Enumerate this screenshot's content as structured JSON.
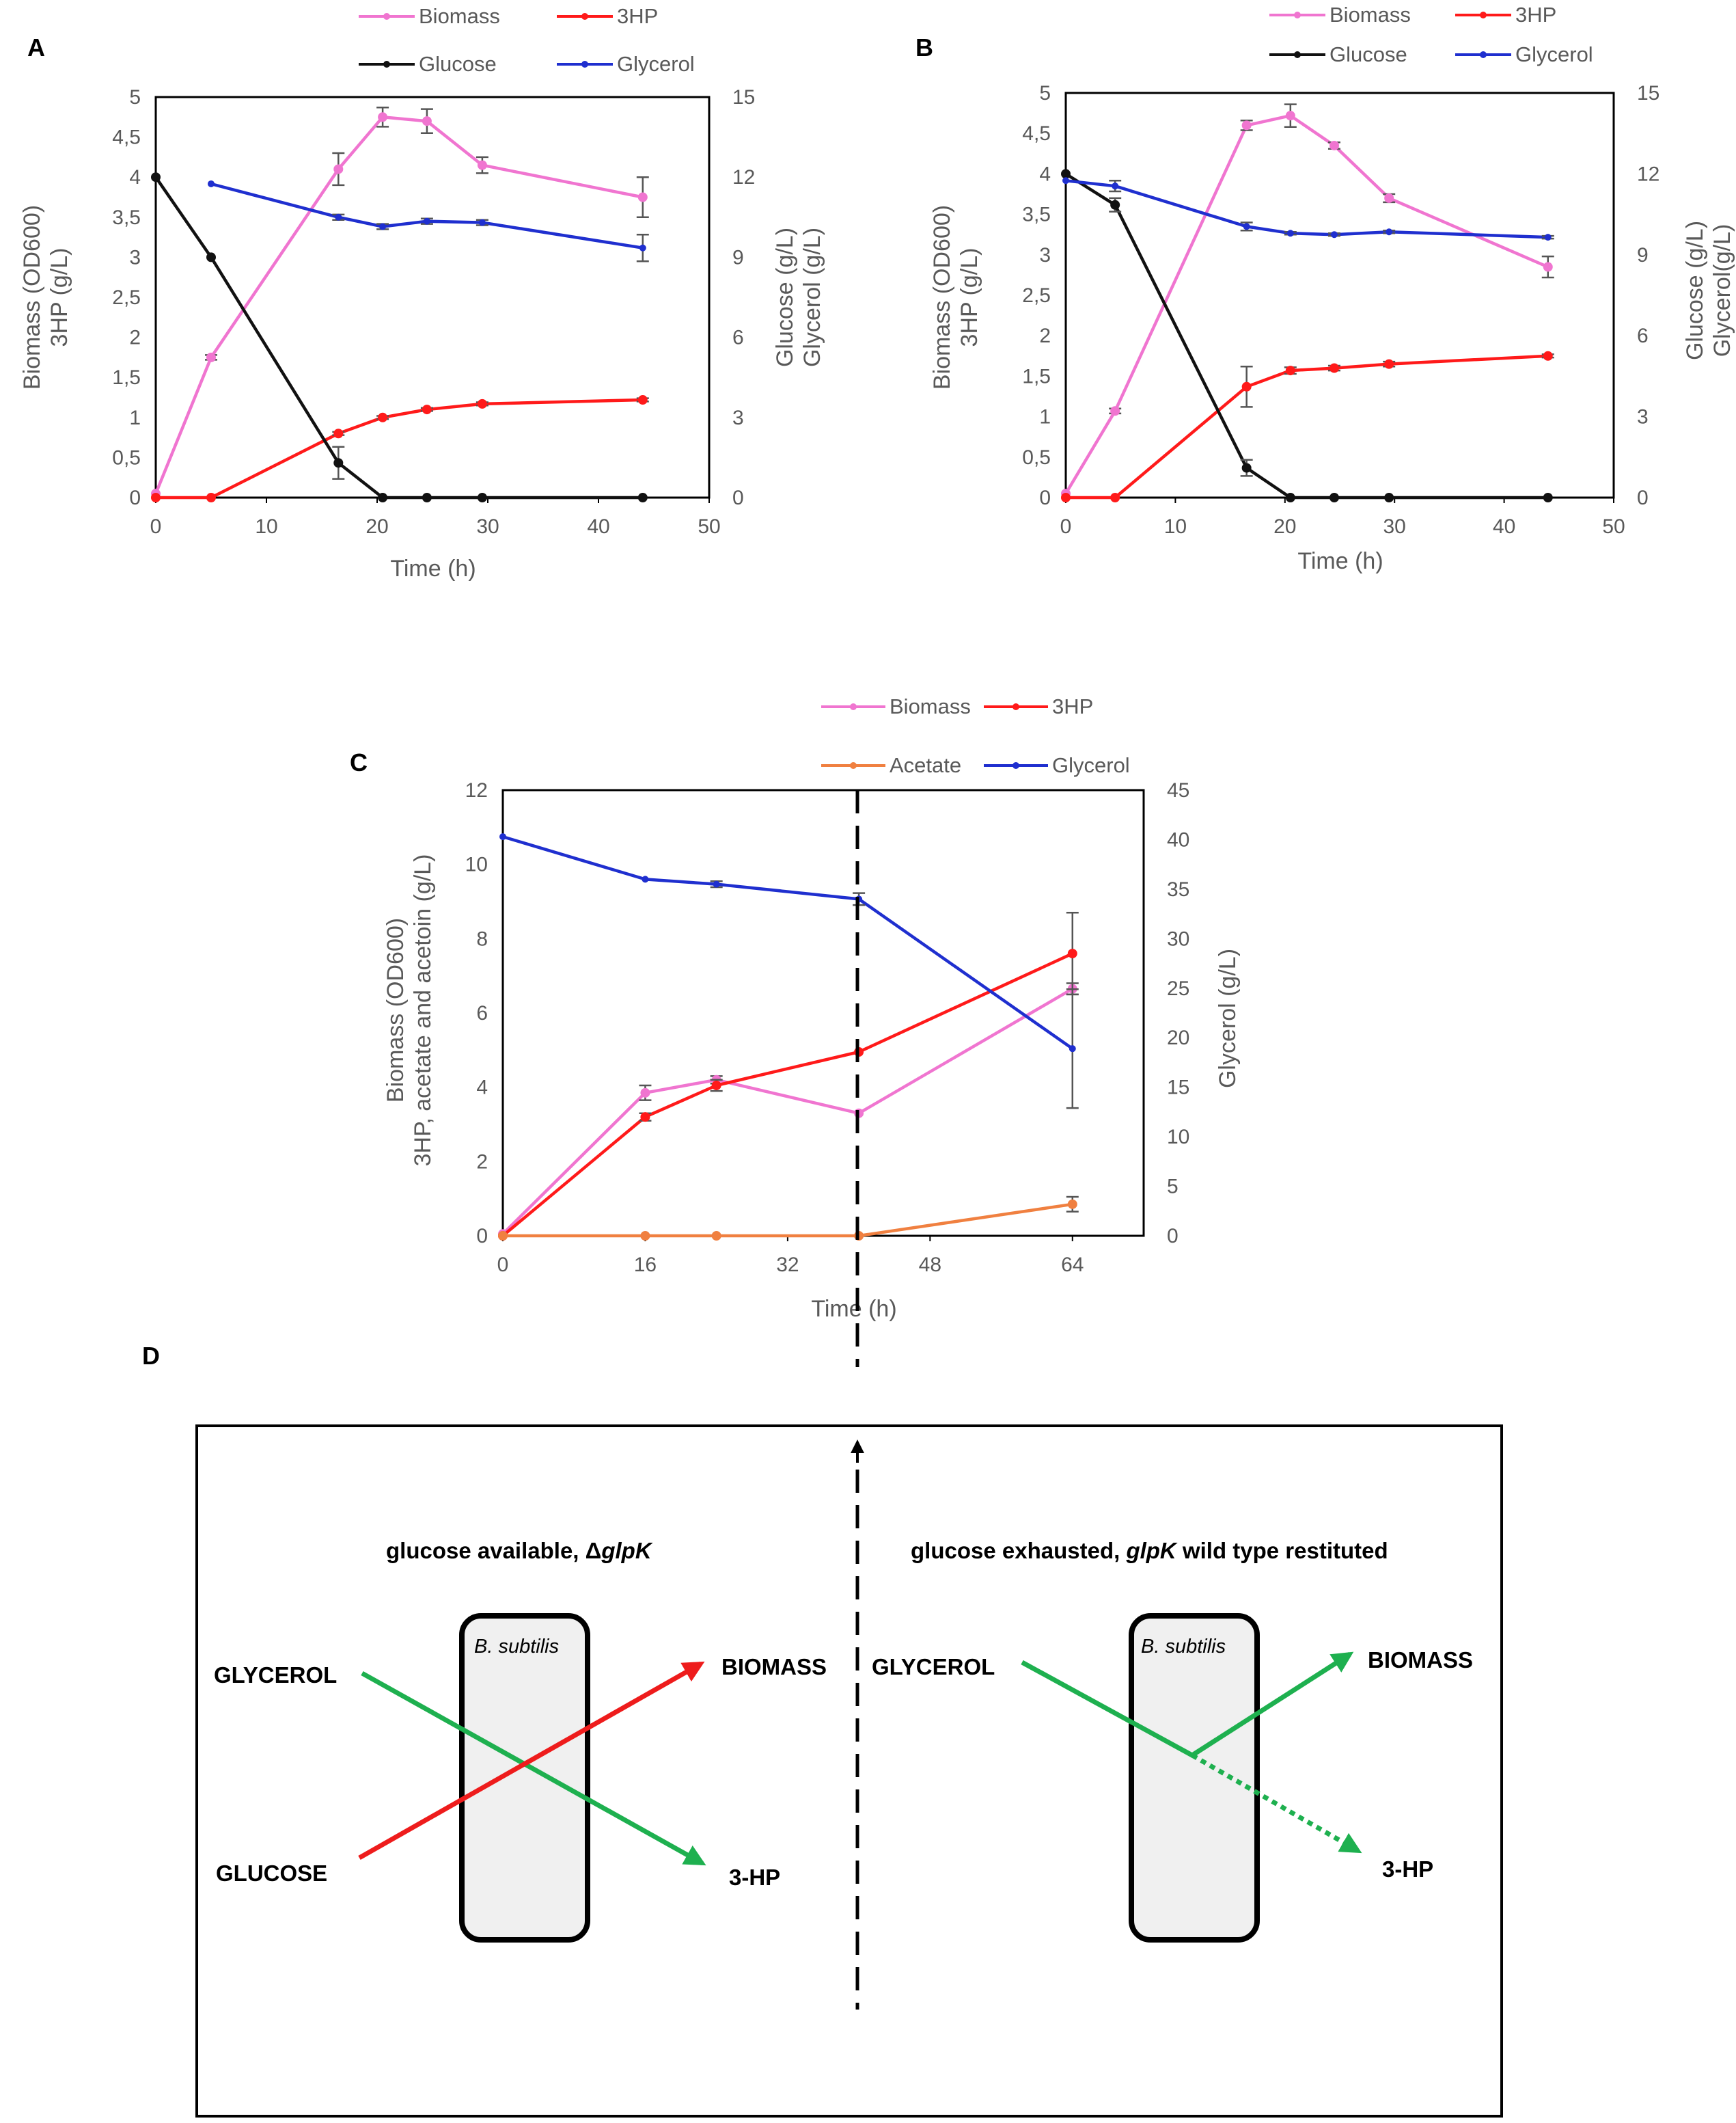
{
  "panels": {
    "A": {
      "letter": "A"
    },
    "B": {
      "letter": "B"
    },
    "C": {
      "letter": "C"
    },
    "D": {
      "letter": "D"
    }
  },
  "chart_data": [
    {
      "panel": "A",
      "type": "line",
      "title": "",
      "xlabel": "Time (h)",
      "ylabel_left": [
        "Biomass (OD600)",
        "3HP (g/L)"
      ],
      "ylabel_right": [
        "Glucose (g/L)",
        "Glycerol (g/L)"
      ],
      "xlim": [
        0,
        50
      ],
      "ylim_left": [
        0,
        5
      ],
      "ylim_right": [
        0,
        15
      ],
      "xticks": [
        0,
        10,
        20,
        30,
        40,
        50
      ],
      "xtick_labels": [
        "0",
        "10",
        "20",
        "30",
        "40",
        "50"
      ],
      "yticks_left": [
        0,
        0.5,
        1,
        1.5,
        2,
        2.5,
        3,
        3.5,
        4,
        4.5,
        5
      ],
      "ytick_labels_left": [
        "0",
        "0,5",
        "1",
        "1,5",
        "2",
        "2,5",
        "3",
        "3,5",
        "4",
        "4,5",
        "5"
      ],
      "yticks_right": [
        0,
        3,
        6,
        9,
        12,
        15
      ],
      "ytick_labels_right": [
        "0",
        "3",
        "6",
        "9",
        "12",
        "15"
      ],
      "grid": false,
      "legend": [
        {
          "name": "Biomass",
          "color": "#f075d0"
        },
        {
          "name": "3HP",
          "color": "#ff1a1a"
        },
        {
          "name": "Glucose",
          "color": "#111111"
        },
        {
          "name": "Glycerol",
          "color": "#1f2fcf"
        }
      ],
      "series": [
        {
          "name": "Biomass",
          "axis": "left",
          "color": "#f075d0",
          "x": [
            0,
            5,
            16.5,
            20.5,
            24.5,
            29.5,
            44
          ],
          "y": [
            0.05,
            1.75,
            4.1,
            4.75,
            4.7,
            4.15,
            3.75
          ],
          "err": [
            0,
            0.03,
            0.2,
            0.12,
            0.15,
            0.1,
            0.25
          ]
        },
        {
          "name": "3HP",
          "axis": "left",
          "color": "#ff1a1a",
          "x": [
            0,
            5,
            16.5,
            20.5,
            24.5,
            29.5,
            44
          ],
          "y": [
            0,
            0,
            0.8,
            1.0,
            1.1,
            1.17,
            1.22
          ],
          "err": [
            0,
            0,
            0.02,
            0.02,
            0.02,
            0.02,
            0.02
          ]
        },
        {
          "name": "Glucose",
          "axis": "right",
          "color": "#111111",
          "x": [
            0,
            5,
            16.5,
            20.5,
            24.5,
            29.5,
            44
          ],
          "y": [
            12,
            9,
            1.3,
            0,
            0,
            0,
            0
          ],
          "err": [
            0,
            0,
            0.6,
            0,
            0,
            0,
            0
          ]
        },
        {
          "name": "Glycerol",
          "axis": "right",
          "color": "#1f2fcf",
          "x": [
            5,
            16.5,
            20.5,
            24.5,
            29.5,
            44
          ],
          "y": [
            11.75,
            10.5,
            10.15,
            10.35,
            10.3,
            9.35
          ],
          "err": [
            0,
            0.1,
            0.1,
            0.1,
            0.1,
            0.5
          ]
        }
      ]
    },
    {
      "panel": "B",
      "type": "line",
      "title": "",
      "xlabel": "Time (h)",
      "ylabel_left": [
        "Biomass (OD600)",
        "3HP (g/L)"
      ],
      "ylabel_right": [
        "Glucose (g/L)",
        "Glycerol(g/L)"
      ],
      "xlim": [
        0,
        50
      ],
      "ylim_left": [
        0,
        5
      ],
      "ylim_right": [
        0,
        15
      ],
      "xticks": [
        0,
        10,
        20,
        30,
        40,
        50
      ],
      "xtick_labels": [
        "0",
        "10",
        "20",
        "30",
        "40",
        "50"
      ],
      "yticks_left": [
        0,
        0.5,
        1,
        1.5,
        2,
        2.5,
        3,
        3.5,
        4,
        4.5,
        5
      ],
      "ytick_labels_left": [
        "0",
        "0,5",
        "1",
        "1,5",
        "2",
        "2,5",
        "3",
        "3,5",
        "4",
        "4,5",
        "5"
      ],
      "yticks_right": [
        0,
        3,
        6,
        9,
        12,
        15
      ],
      "ytick_labels_right": [
        "0",
        "3",
        "6",
        "9",
        "12",
        "15"
      ],
      "grid": false,
      "legend": [
        {
          "name": "Biomass",
          "color": "#f075d0"
        },
        {
          "name": "3HP",
          "color": "#ff1a1a"
        },
        {
          "name": "Glucose",
          "color": "#111111"
        },
        {
          "name": "Glycerol",
          "color": "#1f2fcf"
        }
      ],
      "series": [
        {
          "name": "Biomass",
          "axis": "left",
          "color": "#f075d0",
          "x": [
            0,
            4.5,
            16.5,
            20.5,
            24.5,
            29.5,
            44
          ],
          "y": [
            0.05,
            1.07,
            4.6,
            4.72,
            4.35,
            3.7,
            2.85
          ],
          "err": [
            0,
            0.03,
            0.06,
            0.14,
            0.04,
            0.05,
            0.13
          ]
        },
        {
          "name": "3HP",
          "axis": "left",
          "color": "#ff1a1a",
          "x": [
            0,
            4.5,
            16.5,
            20.5,
            24.5,
            29.5,
            44
          ],
          "y": [
            0,
            0,
            1.37,
            1.57,
            1.6,
            1.65,
            1.75
          ],
          "err": [
            0,
            0,
            0.25,
            0.04,
            0.03,
            0.03,
            0.02
          ]
        },
        {
          "name": "Glucose",
          "axis": "right",
          "color": "#111111",
          "x": [
            0,
            4.5,
            16.5,
            20.5,
            24.5,
            29.5,
            44
          ],
          "y": [
            12,
            10.85,
            1.1,
            0,
            0,
            0,
            0
          ],
          "err": [
            0,
            0.25,
            0.3,
            0,
            0,
            0,
            0
          ]
        },
        {
          "name": "Glycerol",
          "axis": "right",
          "color": "#1f2fcf",
          "x": [
            0,
            4.5,
            16.5,
            20.5,
            24.5,
            29.5,
            44
          ],
          "y": [
            11.75,
            11.55,
            10.05,
            9.8,
            9.75,
            9.85,
            9.65
          ],
          "err": [
            0,
            0.2,
            0.15,
            0.05,
            0.05,
            0.05,
            0.05
          ]
        }
      ]
    },
    {
      "panel": "C",
      "type": "line",
      "title": "",
      "xlabel": "Time (h)",
      "ylabel_left": [
        "Biomass (OD600)",
        "3HP, acetate and acetoin (g/L)"
      ],
      "ylabel_right": [
        "Glycerol (g/L)"
      ],
      "xlim": [
        0,
        72
      ],
      "ylim_left": [
        0,
        12
      ],
      "ylim_right": [
        0,
        45
      ],
      "xticks": [
        0,
        16,
        32,
        48,
        64
      ],
      "xtick_labels": [
        "0",
        "16",
        "32",
        "48",
        "64"
      ],
      "yticks_left": [
        0,
        2,
        4,
        6,
        8,
        10,
        12
      ],
      "ytick_labels_left": [
        "0",
        "2",
        "4",
        "6",
        "8",
        "10",
        "12"
      ],
      "yticks_right": [
        0,
        5,
        10,
        15,
        20,
        25,
        30,
        35,
        40,
        45
      ],
      "ytick_labels_right": [
        "0",
        "5",
        "10",
        "15",
        "20",
        "25",
        "30",
        "35",
        "40",
        "45"
      ],
      "grid": false,
      "legend": [
        {
          "name": "Biomass",
          "color": "#f075d0"
        },
        {
          "name": "3HP",
          "color": "#ff1a1a"
        },
        {
          "name": "Acetate",
          "color": "#f08040"
        },
        {
          "name": "Glycerol",
          "color": "#1f2fcf"
        }
      ],
      "series": [
        {
          "name": "Biomass",
          "axis": "left",
          "color": "#f075d0",
          "x": [
            0,
            16,
            24,
            40,
            64
          ],
          "y": [
            0.05,
            3.85,
            4.2,
            3.3,
            6.65
          ],
          "err": [
            0,
            0.2,
            0.1,
            0,
            0.15
          ]
        },
        {
          "name": "3HP",
          "axis": "left",
          "color": "#ff1a1a",
          "x": [
            0,
            16,
            24,
            40,
            64
          ],
          "y": [
            0,
            3.2,
            4.05,
            4.95,
            7.6
          ],
          "err": [
            0,
            0.1,
            0.15,
            0,
            1.1
          ]
        },
        {
          "name": "Acetate",
          "axis": "left",
          "color": "#f08040",
          "x": [
            0,
            16,
            24,
            40,
            64
          ],
          "y": [
            0,
            0,
            0,
            0,
            0.85
          ],
          "err": [
            0,
            0,
            0,
            0,
            0.2
          ]
        },
        {
          "name": "Glycerol",
          "axis": "right",
          "color": "#1f2fcf",
          "x": [
            0,
            16,
            24,
            40,
            64
          ],
          "y": [
            40.3,
            36,
            35.5,
            34,
            18.9
          ],
          "err": [
            0,
            0,
            0.3,
            0.6,
            6
          ]
        }
      ],
      "annotations": {
        "switch_time": 40
      }
    }
  ],
  "diagram": {
    "left": {
      "title_prefix": "glucose available, Δ",
      "title_gene": "glpK",
      "cell_label": "B. subtilis",
      "inputs": [
        "GLYCEROL",
        "GLUCOSE"
      ],
      "outputs": [
        "BIOMASS",
        "3-HP"
      ]
    },
    "right": {
      "title_prefix": "glucose exhausted, ",
      "title_gene": "glpK",
      "title_suffix": " wild type restituted",
      "cell_label": "B. subtilis",
      "inputs": [
        "GLYCEROL"
      ],
      "outputs": [
        "BIOMASS",
        "3-HP"
      ]
    },
    "colors": {
      "green": "#1eb04f",
      "red": "#ee1c1c",
      "cell_fill": "#f0f0f0"
    }
  }
}
